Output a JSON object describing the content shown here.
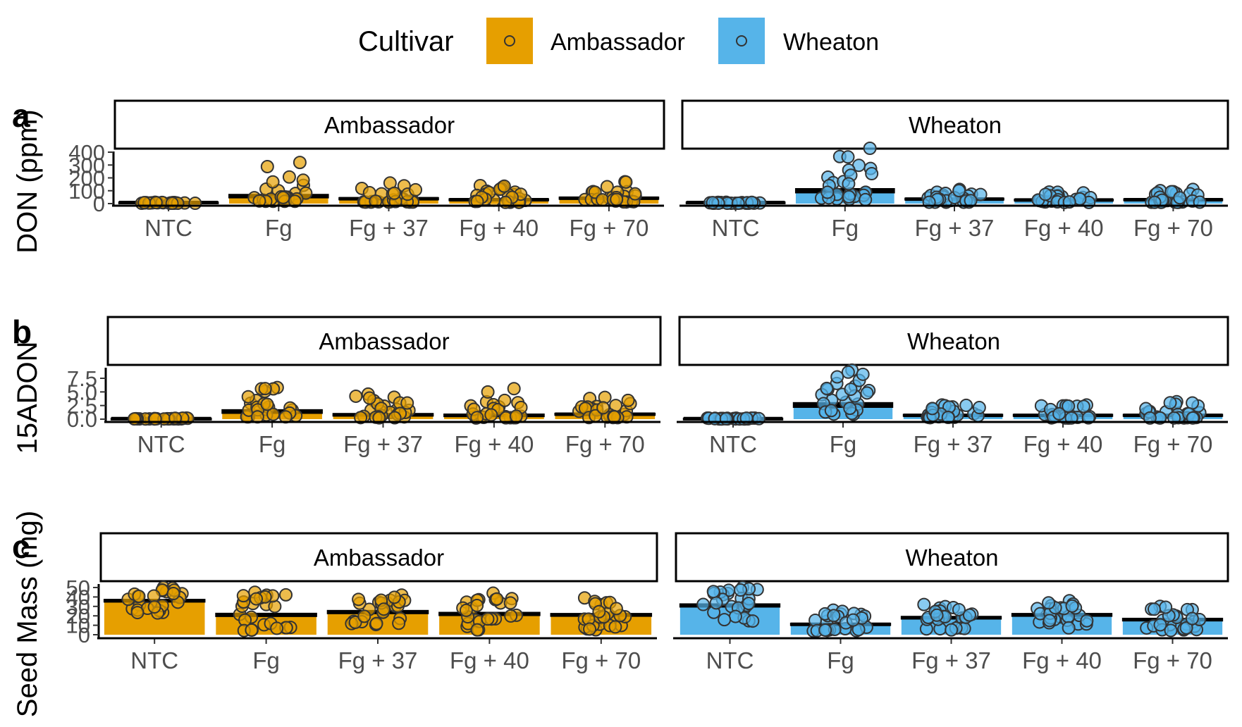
{
  "legend": {
    "title": "Cultivar",
    "items": [
      {
        "label": "Ambassador",
        "color": "#E69F00"
      },
      {
        "label": "Wheaton",
        "color": "#56B4E9"
      }
    ]
  },
  "chart_data": [
    {
      "type": "bar",
      "panel_tag": "a",
      "ylabel": "DON (ppm)",
      "ylim": [
        0,
        400
      ],
      "yticks": [
        0,
        100,
        200,
        300,
        400
      ],
      "categories": [
        "NTC",
        "Fg",
        "Fg + 37",
        "Fg + 40",
        "Fg + 70"
      ],
      "facets": [
        {
          "name": "Ambassador",
          "color": "#E69F00",
          "means": [
            8,
            58,
            38,
            30,
            42
          ],
          "se": [
            3,
            12,
            7,
            6,
            7
          ],
          "spread": [
            10,
            320,
            160,
            140,
            170
          ]
        },
        {
          "name": "Wheaton",
          "color": "#56B4E9",
          "means": [
            8,
            100,
            35,
            28,
            30
          ],
          "se": [
            3,
            15,
            6,
            5,
            6
          ],
          "spread": [
            10,
            430,
            110,
            90,
            110
          ]
        }
      ]
    },
    {
      "type": "bar",
      "panel_tag": "b",
      "ylabel": "15ADON",
      "ylim": [
        0,
        7.5
      ],
      "yticks": [
        0.0,
        2.5,
        5.0,
        7.5
      ],
      "yticklabels": [
        "0.0",
        "2.5",
        "5.0",
        "7.5"
      ],
      "categories": [
        "NTC",
        "Fg",
        "Fg + 37",
        "Fg + 40",
        "Fg + 70"
      ],
      "facets": [
        {
          "name": "Ambassador",
          "color": "#E69F00",
          "means": [
            0.1,
            1.4,
            0.8,
            0.7,
            0.9
          ],
          "se": [
            0.05,
            0.3,
            0.2,
            0.2,
            0.15
          ],
          "spread": [
            0.2,
            5.8,
            4.6,
            5.6,
            4.0
          ]
        },
        {
          "name": "Wheaton",
          "color": "#56B4E9",
          "means": [
            0.1,
            2.6,
            0.7,
            0.7,
            0.7
          ],
          "se": [
            0.05,
            0.4,
            0.15,
            0.15,
            0.15
          ],
          "spread": [
            0.2,
            9.0,
            2.6,
            2.6,
            3.2
          ]
        }
      ]
    },
    {
      "type": "bar",
      "panel_tag": "c",
      "ylabel": "Seed Mass (mg)",
      "ylim": [
        0,
        50
      ],
      "yticks": [
        0,
        10,
        20,
        30,
        40,
        50
      ],
      "categories": [
        "NTC",
        "Fg",
        "Fg + 37",
        "Fg + 40",
        "Fg + 70"
      ],
      "facets": [
        {
          "name": "Ambassador",
          "color": "#E69F00",
          "means": [
            36,
            21,
            24,
            22,
            21
          ],
          "se": [
            1.2,
            1.5,
            1.5,
            1.5,
            1.3
          ],
          "spread": [
            50,
            45,
            42,
            44,
            39
          ]
        },
        {
          "name": "Wheaton",
          "color": "#56B4E9",
          "means": [
            31,
            11,
            18,
            21,
            16
          ],
          "se": [
            1.5,
            1.0,
            1.2,
            1.3,
            1.2
          ],
          "spread": [
            50,
            26,
            32,
            36,
            30
          ]
        }
      ]
    }
  ]
}
